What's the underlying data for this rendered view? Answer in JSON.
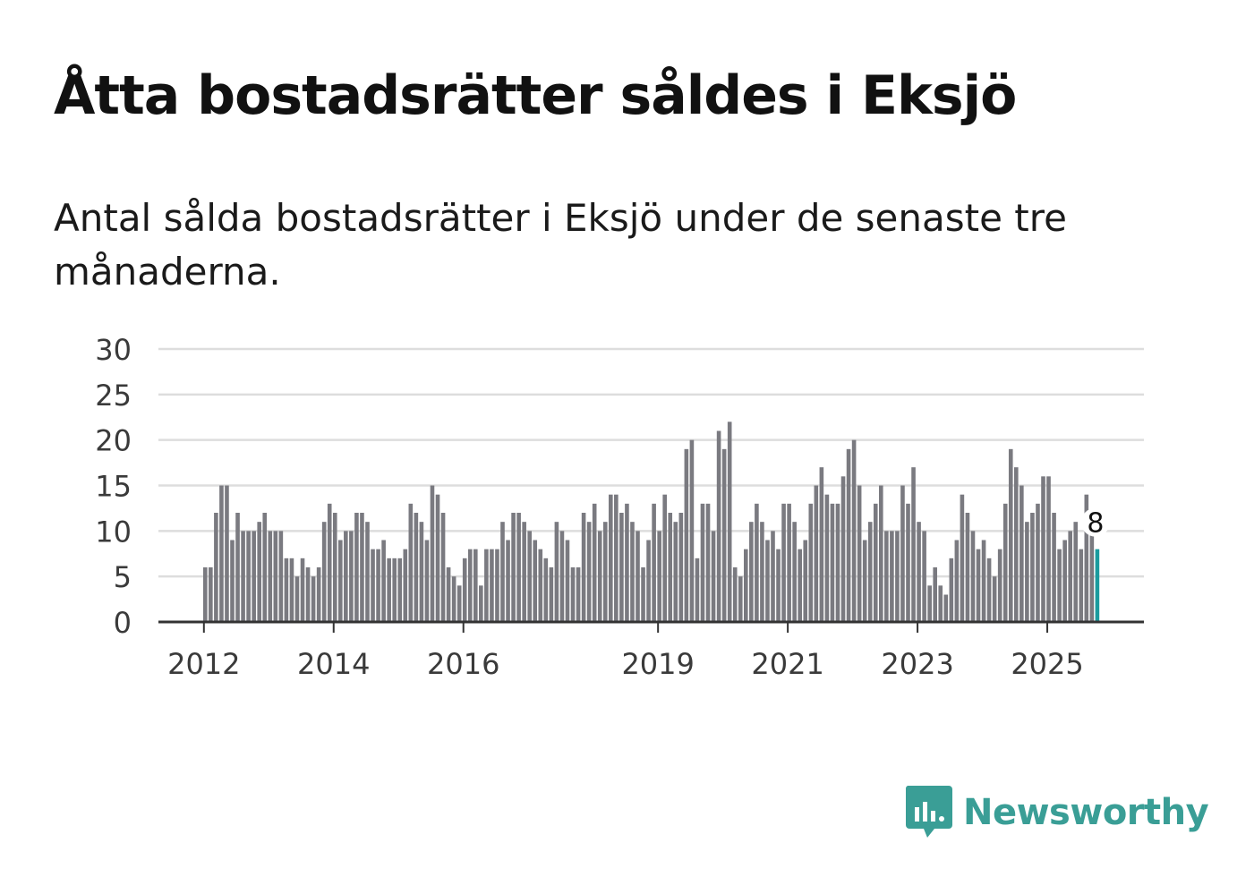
{
  "title": "Åtta bostadsrätter såldes i Eksjö",
  "subtitle": "Antal sålda bostadsrätter i Eksjö under de senaste tre månaderna.",
  "brand": {
    "name": "Newsworthy",
    "color": "#3a9e96",
    "icon": "bar-chart-speech-bubble-icon"
  },
  "colors": {
    "bar": "#7a7a80",
    "highlight": "#1a9b9e",
    "grid": "#dddddd",
    "axis": "#333333"
  },
  "chart_data": {
    "type": "bar",
    "title": "Åtta bostadsrätter såldes i Eksjö",
    "xlabel": "",
    "ylabel": "",
    "ylim": [
      0,
      30
    ],
    "yticks": [
      "0",
      "5",
      "10",
      "15",
      "20",
      "25",
      "30"
    ],
    "xticks": [
      {
        "label": "2012",
        "year": 2012
      },
      {
        "label": "2014",
        "year": 2014
      },
      {
        "label": "2016",
        "year": 2016
      },
      {
        "label": "2019",
        "year": 2019
      },
      {
        "label": "2021",
        "year": 2021
      },
      {
        "label": "2023",
        "year": 2023
      },
      {
        "label": "2025",
        "year": 2025
      }
    ],
    "start": "2012-01",
    "frequency": "monthly",
    "values": [
      6,
      6,
      12,
      15,
      15,
      9,
      12,
      10,
      10,
      10,
      11,
      12,
      10,
      10,
      10,
      7,
      7,
      5,
      7,
      6,
      5,
      6,
      11,
      13,
      12,
      9,
      10,
      10,
      12,
      12,
      11,
      8,
      8,
      9,
      7,
      7,
      7,
      8,
      13,
      12,
      11,
      9,
      15,
      14,
      12,
      6,
      5,
      4,
      7,
      8,
      8,
      4,
      8,
      8,
      8,
      11,
      9,
      12,
      12,
      11,
      10,
      9,
      8,
      7,
      6,
      11,
      10,
      9,
      6,
      6,
      12,
      11,
      13,
      10,
      11,
      14,
      14,
      12,
      13,
      11,
      10,
      6,
      9,
      13,
      10,
      14,
      12,
      11,
      12,
      19,
      20,
      7,
      13,
      13,
      10,
      21,
      19,
      22,
      6,
      5,
      8,
      11,
      13,
      11,
      9,
      10,
      8,
      13,
      13,
      11,
      8,
      9,
      13,
      15,
      17,
      14,
      13,
      13,
      16,
      19,
      20,
      15,
      9,
      11,
      13,
      15,
      10,
      10,
      10,
      15,
      13,
      17,
      11,
      10,
      4,
      6,
      4,
      3,
      7,
      9,
      14,
      12,
      10,
      8,
      9,
      7,
      5,
      8,
      13,
      19,
      17,
      15,
      11,
      12,
      13,
      16,
      16,
      12,
      8,
      9,
      10,
      11,
      8,
      14,
      12,
      8
    ],
    "highlight": {
      "index": 165,
      "value": 8,
      "label": "8"
    }
  }
}
